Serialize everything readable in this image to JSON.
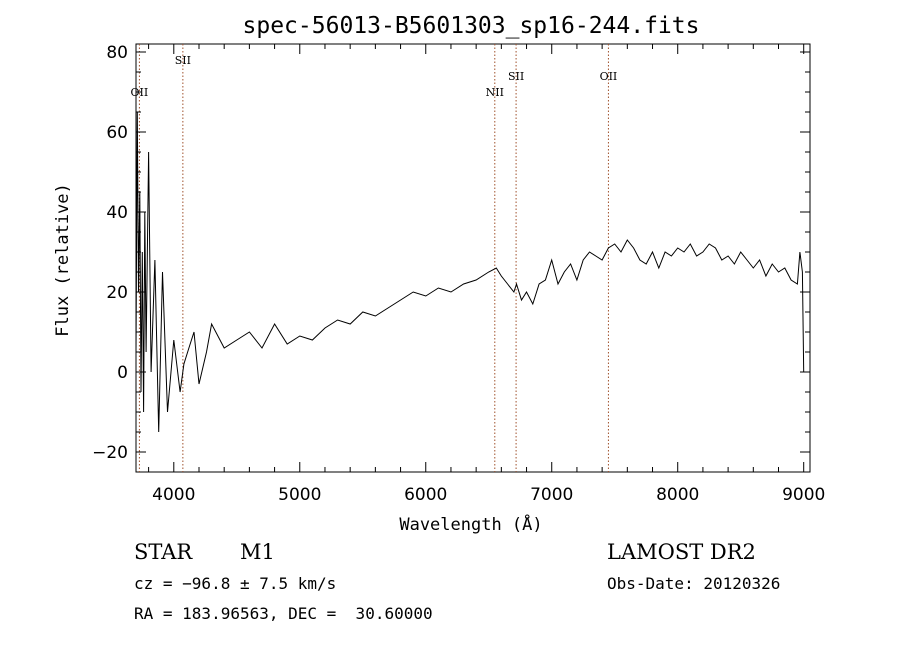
{
  "chart_data": {
    "type": "line",
    "title": "spec-56013-B5601303_sp16-244.fits",
    "xlabel": "Wavelength (Å)",
    "ylabel": "Flux (relative)",
    "xlim": [
      3700,
      9050
    ],
    "ylim": [
      -25,
      82
    ],
    "xticks": [
      4000,
      5000,
      6000,
      7000,
      8000,
      9000
    ],
    "yticks": [
      -20,
      0,
      20,
      40,
      60,
      80
    ],
    "grid": false,
    "series_color": "#000000",
    "line_marker_color": "#a0522d",
    "spectrum": {
      "x": [
        3700,
        3710,
        3720,
        3730,
        3740,
        3750,
        3760,
        3770,
        3780,
        3800,
        3820,
        3850,
        3880,
        3910,
        3950,
        4000,
        4050,
        4080,
        4120,
        4160,
        4200,
        4260,
        4300,
        4400,
        4500,
        4600,
        4700,
        4800,
        4900,
        5000,
        5100,
        5200,
        5300,
        5400,
        5500,
        5600,
        5700,
        5800,
        5900,
        6000,
        6100,
        6200,
        6300,
        6400,
        6500,
        6560,
        6600,
        6650,
        6700,
        6720,
        6760,
        6800,
        6850,
        6900,
        6950,
        7000,
        7050,
        7100,
        7150,
        7200,
        7250,
        7300,
        7350,
        7400,
        7450,
        7500,
        7550,
        7600,
        7650,
        7700,
        7750,
        7800,
        7850,
        7900,
        7950,
        8000,
        8050,
        8100,
        8150,
        8200,
        8250,
        8300,
        8350,
        8400,
        8450,
        8500,
        8550,
        8600,
        8650,
        8700,
        8750,
        8800,
        8850,
        8900,
        8950,
        8970,
        8990,
        9000
      ],
      "y": [
        5,
        65,
        20,
        45,
        -5,
        30,
        -10,
        40,
        5,
        55,
        0,
        28,
        -15,
        25,
        -10,
        8,
        -5,
        2,
        6,
        10,
        -3,
        5,
        12,
        6,
        8,
        10,
        6,
        12,
        7,
        9,
        8,
        11,
        13,
        12,
        15,
        14,
        16,
        18,
        20,
        19,
        21,
        20,
        22,
        23,
        25,
        26,
        24,
        22,
        20,
        22,
        18,
        20,
        17,
        22,
        23,
        28,
        22,
        25,
        27,
        23,
        28,
        30,
        29,
        28,
        31,
        32,
        30,
        33,
        31,
        28,
        27,
        30,
        26,
        30,
        29,
        31,
        30,
        32,
        29,
        30,
        32,
        31,
        28,
        29,
        27,
        30,
        28,
        26,
        28,
        24,
        27,
        25,
        26,
        23,
        22,
        30,
        25,
        0
      ]
    },
    "emission_lines": [
      {
        "label": "OII",
        "wavelength": 3727,
        "label_y": 70
      },
      {
        "label": "SII",
        "wavelength": 4072,
        "label_y": 78
      },
      {
        "label": "NII",
        "wavelength": 6548,
        "label_y": 70
      },
      {
        "label": "SII",
        "wavelength": 6717,
        "label_y": 74
      },
      {
        "label": "OII",
        "wavelength": 7450,
        "label_y": 74
      }
    ]
  },
  "info": {
    "object_class": "STAR",
    "subclass": "M1",
    "survey": "LAMOST DR2",
    "cz": "cz = −96.8 ± 7.5 km/s",
    "obs_date": "Obs-Date: 20120326",
    "coords": "RA = 183.96563, DEC =  30.60000"
  }
}
